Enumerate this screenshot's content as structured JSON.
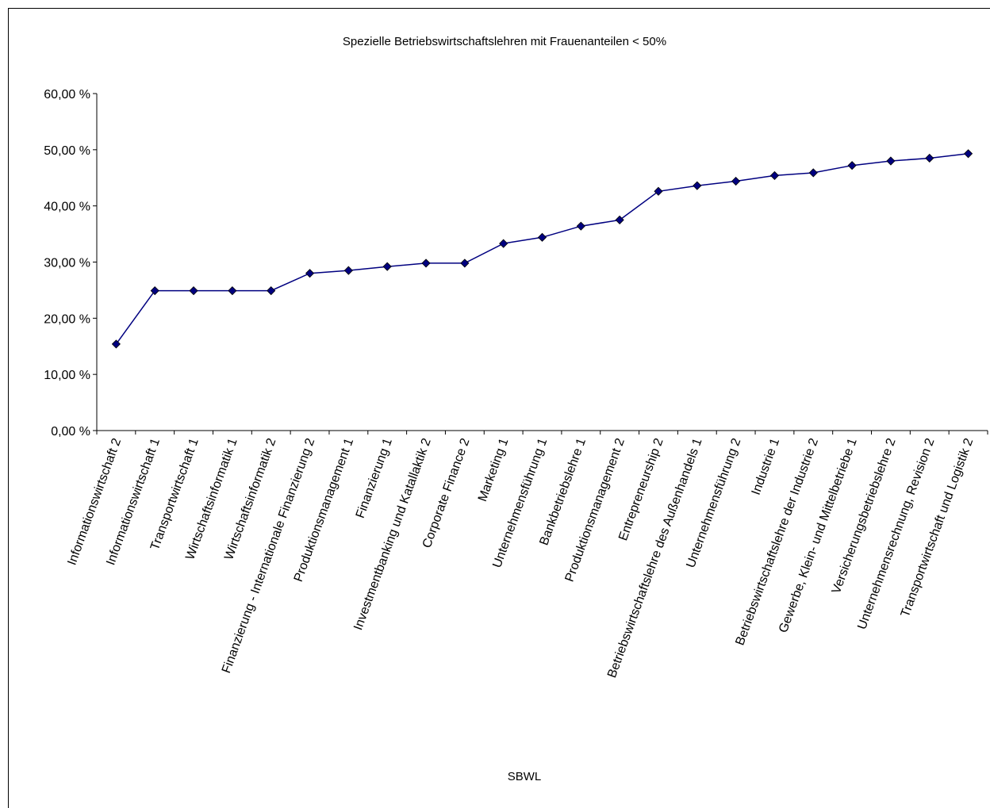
{
  "chart_data": {
    "type": "line",
    "title": "Spezielle Betriebswirtschaftslehren mit Frauenanteilen < 50%",
    "xlabel": "SBWL",
    "ylabel": "",
    "ylim": [
      0,
      0.6
    ],
    "yticks": [
      "0,00 %",
      "10,00 %",
      "20,00 %",
      "30,00 %",
      "40,00 %",
      "50,00 %",
      "60,00 %"
    ],
    "grid": false,
    "legend": "none",
    "line_color": "#000080",
    "marker_color": "#000080",
    "categories": [
      "Informationswirtschaft 2",
      "Informationswirtschaft 1",
      "Transportwirtschaft 1",
      "Wirtschaftsinformatik 1",
      "Wirtschaftsinformatik 2",
      "Finanzierung - Internationale Finanzierung 2",
      "Produktionsmanagement 1",
      "Finanzierung 1",
      "Investmentbanking und Katallaktik 2",
      "Corporate Finance 2",
      "Marketing 1",
      "Unternehmensführung 1",
      "Bankbetriebslehre 1",
      "Produktionsmanagement 2",
      "Entrepreneurship 2",
      "Betriebswirtschaftslehre des Außenhandels 1",
      "Unternehmensführung 2",
      "Industrie 1",
      "Betriebswirtschaftslehre der Industrie 2",
      "Gewerbe, Klein- und Mittelbetriebe 1",
      "Versicherungsbetriebslehre 2",
      "Unternehmensrechnung, Revision 2",
      "Transportwirtschaft und Logistik 2"
    ],
    "series": [
      {
        "values": [
          0.154,
          0.249,
          0.249,
          0.249,
          0.249,
          0.28,
          0.285,
          0.292,
          0.298,
          0.298,
          0.333,
          0.344,
          0.364,
          0.375,
          0.426,
          0.436,
          0.444,
          0.454,
          0.459,
          0.472,
          0.48,
          0.485,
          0.493
        ]
      }
    ]
  }
}
